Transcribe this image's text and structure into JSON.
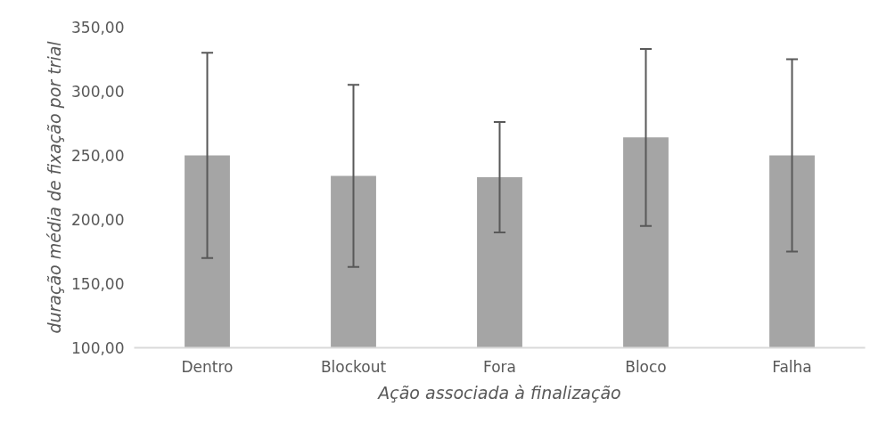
{
  "chart_data": {
    "type": "bar",
    "categories": [
      "Dentro",
      "Blockout",
      "Fora",
      "Bloco",
      "Falha"
    ],
    "values": [
      250,
      234,
      233,
      264,
      250
    ],
    "errors": [
      80,
      71,
      43,
      69,
      75
    ],
    "color": "#a5a5a5",
    "xlabel": "Ação associada à finalização",
    "ylabel": "duração média de fixação por trial",
    "ylim": [
      100,
      350
    ],
    "yticks": [
      {
        "value": 100,
        "label": "100,00"
      },
      {
        "value": 150,
        "label": "150,00"
      },
      {
        "value": 200,
        "label": "200,00"
      },
      {
        "value": 250,
        "label": "250,00"
      },
      {
        "value": 300,
        "label": "300,00"
      },
      {
        "value": 350,
        "label": "350,00"
      }
    ],
    "grid": false
  }
}
